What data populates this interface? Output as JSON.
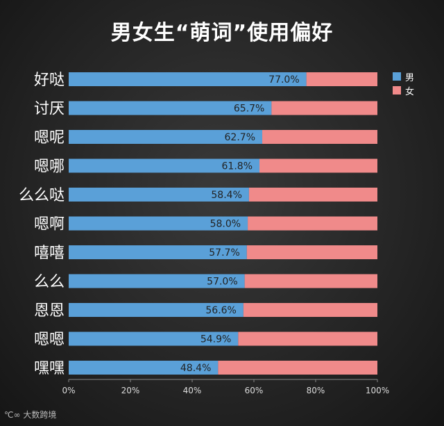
{
  "chart_data": {
    "type": "bar",
    "stacked": true,
    "orientation": "horizontal",
    "title": "男女生“萌词”使用偏好",
    "categories": [
      "好哒",
      "讨厌",
      "嗯呢",
      "嗯哪",
      "么么哒",
      "嗯啊",
      "嘻嘻",
      "么么",
      "恩恩",
      "嗯嗯",
      "嘿嘿"
    ],
    "series": [
      {
        "name": "男",
        "color": "#5aa0d8",
        "values": [
          77.0,
          65.7,
          62.7,
          61.8,
          58.4,
          58.0,
          57.7,
          57.0,
          56.6,
          54.9,
          48.4
        ]
      },
      {
        "name": "女",
        "color": "#f08a8a",
        "values": [
          23.0,
          34.3,
          37.3,
          38.2,
          41.6,
          42.0,
          42.3,
          43.0,
          43.4,
          45.1,
          51.6
        ]
      }
    ],
    "data_labels": [
      "77.0%",
      "65.7%",
      "62.7%",
      "61.8%",
      "58.4%",
      "58.0%",
      "57.7%",
      "57.0%",
      "56.6%",
      "54.9%",
      "48.4%"
    ],
    "x_ticks": [
      "0%",
      "20%",
      "40%",
      "60%",
      "80%",
      "100%"
    ],
    "xlim": [
      0,
      100
    ],
    "grid": false,
    "legend_position": "top-right"
  },
  "watermark": "大数跨境"
}
